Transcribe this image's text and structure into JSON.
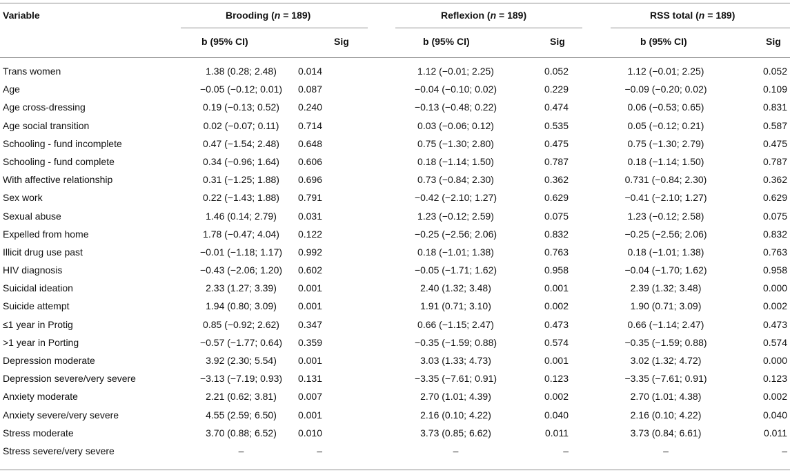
{
  "table": {
    "header": {
      "variable": "Variable",
      "groups": [
        {
          "name": "Brooding",
          "n_prefix": "n",
          "n_value": "= 189"
        },
        {
          "name": "Reflexion",
          "n_prefix": "n",
          "n_value": "= 189"
        },
        {
          "name": "RSS total",
          "n_prefix": "n",
          "n_value": "= 189"
        }
      ],
      "sub": {
        "b": "b (95% CI)",
        "sig": "Sig"
      }
    },
    "rows": [
      {
        "var": "Trans women",
        "b1": "1.38 (0.28; 2.48)",
        "s1": "0.014",
        "b2": "1.12 (−0.01; 2.25)",
        "s2": "0.052",
        "b3": "1.12 (−0.01; 2.25)",
        "s3": "0.052"
      },
      {
        "var": "Age",
        "b1": "−0.05 (−0.12; 0.01)",
        "s1": "0.087",
        "b2": "−0.04 (−0.10; 0.02)",
        "s2": "0.229",
        "b3": "−0.09 (−0.20; 0.02)",
        "s3": "0.109"
      },
      {
        "var": "Age cross-dressing",
        "b1": "0.19 (−0.13; 0.52)",
        "s1": "0.240",
        "b2": "−0.13 (−0.48; 0.22)",
        "s2": "0.474",
        "b3": "0.06 (−0.53; 0.65)",
        "s3": "0.831"
      },
      {
        "var": "Age social transition",
        "b1": "0.02 (−0.07; 0.11)",
        "s1": "0.714",
        "b2": "0.03 (−0.06; 0.12)",
        "s2": "0.535",
        "b3": "0.05 (−0.12; 0.21)",
        "s3": "0.587"
      },
      {
        "var": "Schooling - fund incomplete",
        "b1": "0.47 (−1.54; 2.48)",
        "s1": "0.648",
        "b2": "0.75 (−1.30; 2.80)",
        "s2": "0.475",
        "b3": "0.75 (−1.30; 2.79)",
        "s3": "0.475"
      },
      {
        "var": "Schooling - fund complete",
        "b1": "0.34 (−0.96; 1.64)",
        "s1": "0.606",
        "b2": "0.18 (−1.14; 1.50)",
        "s2": "0.787",
        "b3": "0.18 (−1.14; 1.50)",
        "s3": "0.787"
      },
      {
        "var": "With affective relationship",
        "b1": "0.31 (−1.25; 1.88)",
        "s1": "0.696",
        "b2": "0.73 (−0.84; 2.30)",
        "s2": "0.362",
        "b3": "0.731 (−0.84; 2.30)",
        "s3": "0.362"
      },
      {
        "var": "Sex work",
        "b1": "0.22 (−1.43; 1.88)",
        "s1": "0.791",
        "b2": "−0.42 (−2.10; 1.27)",
        "s2": "0.629",
        "b3": "−0.41 (−2.10; 1.27)",
        "s3": "0.629"
      },
      {
        "var": "Sexual abuse",
        "b1": "1.46 (0.14; 2.79)",
        "s1": "0.031",
        "b2": "1.23 (−0.12; 2.59)",
        "s2": "0.075",
        "b3": "1.23 (−0.12; 2.58)",
        "s3": "0.075"
      },
      {
        "var": "Expelled from home",
        "b1": "1.78 (−0.47; 4.04)",
        "s1": "0.122",
        "b2": "−0.25 (−2.56; 2.06)",
        "s2": "0.832",
        "b3": "−0.25 (−2.56; 2.06)",
        "s3": "0.832"
      },
      {
        "var": "Illicit drug use past",
        "b1": "−0.01 (−1.18; 1.17)",
        "s1": "0.992",
        "b2": "0.18 (−1.01; 1.38)",
        "s2": "0.763",
        "b3": "0.18 (−1.01; 1.38)",
        "s3": "0.763"
      },
      {
        "var": "HIV diagnosis",
        "b1": "−0.43 (−2.06; 1.20)",
        "s1": "0.602",
        "b2": "−0.05 (−1.71; 1.62)",
        "s2": "0.958",
        "b3": "−0.04 (−1.70; 1.62)",
        "s3": "0.958"
      },
      {
        "var": "Suicidal ideation",
        "b1": "2.33 (1.27; 3.39)",
        "s1": "0.001",
        "b2": "2.40 (1.32; 3.48)",
        "s2": "0.001",
        "b3": "2.39 (1.32; 3.48)",
        "s3": "0.000"
      },
      {
        "var": "Suicide attempt",
        "b1": "1.94 (0.80; 3.09)",
        "s1": "0.001",
        "b2": "1.91 (0.71; 3.10)",
        "s2": "0.002",
        "b3": "1.90 (0.71; 3.09)",
        "s3": "0.002"
      },
      {
        "var": "≤1 year in Protig",
        "b1": "0.85 (−0.92; 2.62)",
        "s1": "0.347",
        "b2": "0.66 (−1.15; 2.47)",
        "s2": "0.473",
        "b3": "0.66 (−1.14; 2.47)",
        "s3": "0.473"
      },
      {
        "var": ">1 year in Porting",
        "b1": "−0.57 (−1.77; 0.64)",
        "s1": "0.359",
        "b2": "−0.35 (−1.59; 0.88)",
        "s2": "0.574",
        "b3": "−0.35 (−1.59; 0.88)",
        "s3": "0.574"
      },
      {
        "var": "Depression moderate",
        "b1": "3.92 (2.30; 5.54)",
        "s1": "0.001",
        "b2": "3.03 (1.33; 4.73)",
        "s2": "0.001",
        "b3": "3.02 (1.32; 4.72)",
        "s3": "0.000"
      },
      {
        "var": "Depression severe/very severe",
        "b1": "−3.13 (−7.19; 0.93)",
        "s1": "0.131",
        "b2": "−3.35 (−7.61; 0.91)",
        "s2": "0.123",
        "b3": "−3.35 (−7.61; 0.91)",
        "s3": "0.123"
      },
      {
        "var": "Anxiety moderate",
        "b1": "2.21 (0.62; 3.81)",
        "s1": "0.007",
        "b2": "2.70 (1.01; 4.39)",
        "s2": "0.002",
        "b3": "2.70 (1.01; 4.38)",
        "s3": "0.002"
      },
      {
        "var": "Anxiety severe/very severe",
        "b1": "4.55 (2.59; 6.50)",
        "s1": "0.001",
        "b2": "2.16 (0.10; 4.22)",
        "s2": "0.040",
        "b3": "2.16 (0.10; 4.22)",
        "s3": "0.040"
      },
      {
        "var": "Stress moderate",
        "b1": "3.70 (0.88; 6.52)",
        "s1": "0.010",
        "b2": "3.73 (0.85; 6.62)",
        "s2": "0.011",
        "b3": "3.73 (0.84; 6.61)",
        "s3": "0.011"
      },
      {
        "var": "Stress severe/very severe",
        "b1": "–",
        "s1": "–",
        "b2": "–",
        "s2": "–",
        "b3": "–",
        "s3": "–"
      }
    ]
  }
}
